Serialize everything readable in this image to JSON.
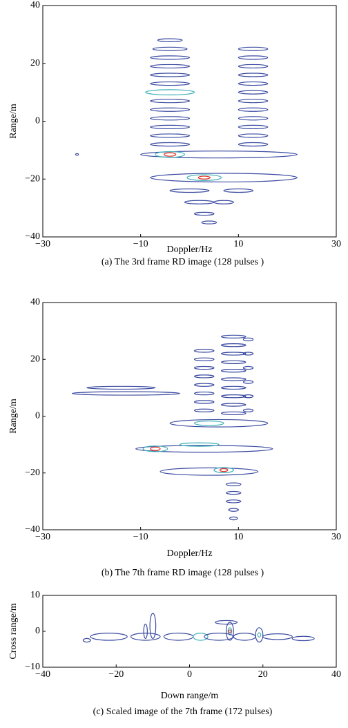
{
  "chart_data": [
    {
      "type": "contour",
      "caption": "(a) The 3rd frame RD image (128 pulses )",
      "xlabel": "Doppler/Hz",
      "ylabel": "Range/m",
      "xlim": [
        -30,
        30
      ],
      "ylim": [
        -40,
        40
      ],
      "xticks": [
        {
          "value": -30,
          "label": "−30"
        },
        {
          "value": -10,
          "label": "−10"
        },
        10,
        30
      ],
      "yticks": [
        {
          "value": -40,
          "label": "−40"
        },
        {
          "value": -20,
          "label": "−20"
        },
        0,
        20,
        40
      ],
      "colors": [
        "#3a4aa0",
        "#3fb0b8",
        "#e03020"
      ],
      "contours": [
        [
          -4,
          28,
          2.5,
          0.5,
          0
        ],
        [
          -4,
          25,
          3.5,
          0.6,
          0
        ],
        [
          -4,
          22,
          4,
          0.6,
          0
        ],
        [
          -4,
          19,
          4,
          0.6,
          0
        ],
        [
          -4,
          16,
          4,
          0.6,
          0
        ],
        [
          -4,
          13,
          4,
          0.6,
          0
        ],
        [
          -4,
          10,
          5,
          0.9,
          1
        ],
        [
          -4,
          7,
          4,
          0.6,
          0
        ],
        [
          -4,
          4,
          4,
          0.6,
          0
        ],
        [
          -4,
          1,
          4,
          0.6,
          0
        ],
        [
          -4,
          -2,
          4,
          0.6,
          0
        ],
        [
          -4,
          -5,
          4,
          0.6,
          0
        ],
        [
          -4,
          -8,
          4,
          0.6,
          0
        ],
        [
          13,
          25,
          3,
          0.6,
          0
        ],
        [
          13,
          22,
          3,
          0.6,
          0
        ],
        [
          13,
          19,
          3,
          0.6,
          0
        ],
        [
          13,
          16,
          3,
          0.6,
          0
        ],
        [
          13,
          13,
          3,
          0.6,
          0
        ],
        [
          13,
          10,
          3,
          0.6,
          0
        ],
        [
          13,
          7,
          3,
          0.6,
          0
        ],
        [
          13,
          4,
          3,
          0.6,
          0
        ],
        [
          13,
          1,
          3,
          0.6,
          0
        ],
        [
          13,
          -2,
          3,
          0.6,
          0
        ],
        [
          13,
          -5,
          3,
          0.6,
          0
        ],
        [
          13,
          -8,
          3,
          0.6,
          0
        ],
        [
          6,
          -11.5,
          16,
          1.2,
          0
        ],
        [
          -4,
          -11.5,
          3,
          1,
          1
        ],
        [
          -4,
          -11.5,
          1.2,
          0.6,
          2
        ],
        [
          7,
          -19.5,
          15,
          1.5,
          0
        ],
        [
          3,
          -19.5,
          3.5,
          1,
          1
        ],
        [
          3,
          -19.5,
          1.2,
          0.5,
          2
        ],
        [
          0,
          -24,
          4,
          0.6,
          0
        ],
        [
          2,
          -28,
          3,
          0.6,
          0
        ],
        [
          3,
          -32,
          2,
          0.5,
          0
        ],
        [
          4,
          -35,
          1.5,
          0.5,
          0
        ],
        [
          10,
          -24,
          3,
          0.6,
          0
        ],
        [
          7,
          -28,
          2,
          0.6,
          0
        ],
        [
          -23,
          -11.5,
          0.3,
          0.3,
          0
        ]
      ]
    },
    {
      "type": "contour",
      "caption": "(b) The 7th frame RD image (128 pulses )",
      "xlabel": "Doppler/Hz",
      "ylabel": "Range/m",
      "xlim": [
        -30,
        30
      ],
      "ylim": [
        -40,
        40
      ],
      "xticks": [
        {
          "value": -30,
          "label": "−30"
        },
        {
          "value": -10,
          "label": "−10"
        },
        10,
        30
      ],
      "yticks": [
        {
          "value": -40,
          "label": "−40"
        },
        {
          "value": -20,
          "label": "−20"
        },
        0,
        20,
        40
      ],
      "colors": [
        "#3a4aa0",
        "#3fb0b8",
        "#e03020"
      ],
      "contours": [
        [
          3,
          23,
          2,
          0.5,
          0
        ],
        [
          3,
          20,
          2,
          0.5,
          0
        ],
        [
          3,
          17,
          2,
          0.5,
          0
        ],
        [
          3,
          14,
          2,
          0.5,
          0
        ],
        [
          3,
          11,
          2,
          0.5,
          0
        ],
        [
          3,
          8,
          2,
          0.5,
          0
        ],
        [
          3,
          5,
          2,
          0.5,
          0
        ],
        [
          3,
          2,
          2,
          0.5,
          0
        ],
        [
          9,
          28,
          2.5,
          0.5,
          0
        ],
        [
          9,
          25,
          2.5,
          0.5,
          0
        ],
        [
          9,
          22,
          2.5,
          0.5,
          0
        ],
        [
          9,
          19,
          2.5,
          0.5,
          0
        ],
        [
          9,
          16,
          2.5,
          0.5,
          0
        ],
        [
          9,
          13,
          2.5,
          0.5,
          0
        ],
        [
          9,
          10,
          2.5,
          0.5,
          0
        ],
        [
          9,
          7,
          2.5,
          0.5,
          0
        ],
        [
          9,
          4,
          2.5,
          0.5,
          0
        ],
        [
          9,
          1,
          2.5,
          0.5,
          0
        ],
        [
          12,
          27,
          1,
          0.5,
          0
        ],
        [
          12,
          22,
          1,
          0.5,
          0
        ],
        [
          12,
          17,
          1,
          0.5,
          0
        ],
        [
          12,
          12,
          1,
          0.5,
          0
        ],
        [
          12,
          7,
          1,
          0.5,
          0
        ],
        [
          12,
          2,
          1,
          0.5,
          0
        ],
        [
          -14,
          10,
          7,
          0.5,
          0
        ],
        [
          -13,
          8,
          11,
          0.6,
          0
        ],
        [
          6,
          -2.5,
          10,
          1.3,
          0
        ],
        [
          4,
          -2.5,
          3,
          0.8,
          1
        ],
        [
          3,
          -11.5,
          14,
          1.2,
          0
        ],
        [
          -7,
          -11.5,
          2.5,
          1,
          1
        ],
        [
          -7,
          -11.5,
          1,
          0.6,
          2
        ],
        [
          2,
          -10,
          4,
          0.6,
          1
        ],
        [
          4,
          -19.5,
          10,
          1.3,
          0
        ],
        [
          7,
          -19,
          2,
          0.9,
          1
        ],
        [
          7,
          -19,
          0.8,
          0.5,
          2
        ],
        [
          9,
          -24,
          1.5,
          0.5,
          0
        ],
        [
          9,
          -27,
          1.5,
          0.5,
          0
        ],
        [
          9,
          -30,
          1.5,
          0.5,
          0
        ],
        [
          9,
          -33,
          1,
          0.5,
          0
        ],
        [
          9,
          -36,
          0.8,
          0.5,
          0
        ]
      ]
    },
    {
      "type": "contour",
      "caption": "(c) Scaled image of the 7th frame (172 pulses)",
      "xlabel": "Down range/m",
      "ylabel": "Cross range/m",
      "xlim": [
        -40,
        40
      ],
      "ylim": [
        -10,
        10
      ],
      "xticks": [
        {
          "value": -40,
          "label": "−40"
        },
        {
          "value": -20,
          "label": "−20"
        },
        0,
        20,
        40
      ],
      "yticks": [
        {
          "value": -10,
          "label": "−10"
        },
        0,
        10
      ],
      "colors": [
        "#3a4aa0",
        "#3fb0b8",
        "#e03020"
      ],
      "contours": [
        [
          -10,
          1.5,
          0.8,
          3.5,
          0
        ],
        [
          -12,
          0,
          0.5,
          2,
          0
        ],
        [
          11,
          0,
          1,
          2.5,
          0
        ],
        [
          11,
          0,
          0.5,
          1,
          1
        ],
        [
          11,
          0,
          0.3,
          0.4,
          2
        ],
        [
          19,
          -1,
          1,
          2,
          0
        ],
        [
          19,
          -1,
          0.4,
          0.6,
          1
        ],
        [
          -22,
          -1.5,
          5,
          1,
          0
        ],
        [
          -12,
          -1.5,
          4,
          1,
          0
        ],
        [
          -3,
          -1.5,
          4,
          1,
          0
        ],
        [
          3,
          -1.5,
          2,
          1,
          1
        ],
        [
          8,
          -1.5,
          4,
          1,
          0
        ],
        [
          15,
          -1.5,
          3,
          1,
          0
        ],
        [
          24,
          -1.5,
          4,
          0.8,
          0
        ],
        [
          31,
          -2,
          3,
          0.6,
          0
        ],
        [
          -28,
          -2.5,
          1,
          0.5,
          0
        ],
        [
          10,
          2.5,
          3,
          0.5,
          0
        ]
      ]
    }
  ]
}
